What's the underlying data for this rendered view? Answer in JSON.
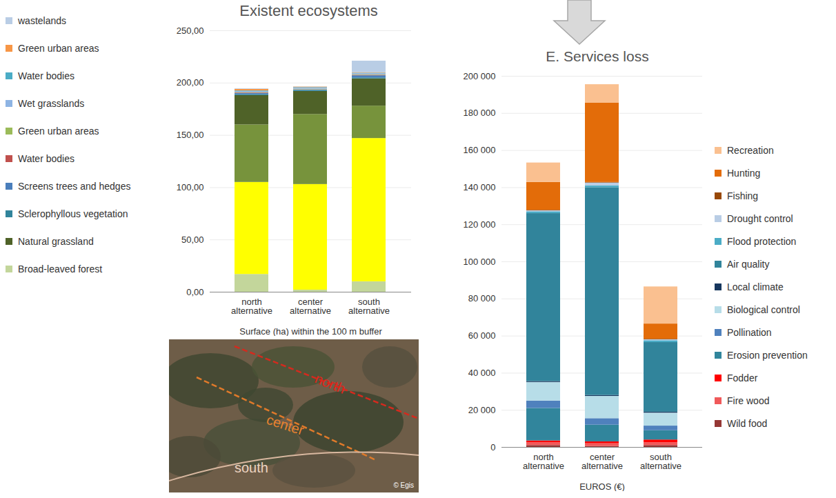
{
  "chart_data": [
    {
      "type": "bar",
      "stacked": true,
      "title": "Existent ecosystems",
      "xlabel": "Surface (ha) within the 100 m buffer",
      "categories": [
        "north alternative",
        "center alternative",
        "south alternative"
      ],
      "ylim": [
        0,
        250
      ],
      "yticks": [
        {
          "value": 0,
          "label": "0,00"
        },
        {
          "value": 50,
          "label": "50,00"
        },
        {
          "value": 100,
          "label": "100,00"
        },
        {
          "value": 150,
          "label": "150,00"
        },
        {
          "value": 200,
          "label": "200,00"
        },
        {
          "value": 250,
          "label": "250,00"
        }
      ],
      "grid": true,
      "legend": "left",
      "series": [
        {
          "name": "Broad-leaved forest",
          "color": "#c3d69b",
          "values": [
            17,
            2,
            10
          ]
        },
        {
          "name": null,
          "color": "#ffff00",
          "values": [
            88,
            101,
            137
          ]
        },
        {
          "name": null,
          "color": "#77933c",
          "values": [
            55,
            67,
            31
          ]
        },
        {
          "name": "Natural grassland",
          "color": "#4f6228",
          "values": [
            28,
            22,
            26
          ]
        },
        {
          "name": "Sclerophyllous vegetation",
          "color": "#31849b",
          "values": [
            1,
            1,
            1
          ]
        },
        {
          "name": "Screens trees and hedges",
          "color": "#4a7ebb",
          "values": [
            1,
            0.5,
            2
          ]
        },
        {
          "name": "Water bodies",
          "color": "#c0504d",
          "values": [
            0.5,
            0.2,
            0.5
          ]
        },
        {
          "name": "Green urban areas",
          "color": "#9bbb59",
          "values": [
            0.5,
            0.5,
            0.5
          ]
        },
        {
          "name": "Wet grasslands",
          "color": "#8eb4e3",
          "values": [
            1,
            1,
            1
          ]
        },
        {
          "name": "Water bodies",
          "color": "#4bacc6",
          "values": [
            0.5,
            0.5,
            0.5
          ]
        },
        {
          "name": "Green urban areas",
          "color": "#f79646",
          "values": [
            1.5,
            0.5,
            0.5
          ]
        },
        {
          "name": "wastelands",
          "color": "#b9cde5",
          "values": [
            0.5,
            0.2,
            11
          ]
        }
      ]
    },
    {
      "type": "bar",
      "stacked": true,
      "title": "E. Services loss",
      "xlabel": "EUROS (€)",
      "categories": [
        "north alternative",
        "center alternative",
        "south alternative"
      ],
      "ylim": [
        0,
        200000
      ],
      "yticks": [
        0,
        {
          "value": 20000,
          "label": "20 000"
        },
        {
          "value": 40000,
          "label": "40 000"
        },
        {
          "value": 60000,
          "label": "60 000"
        },
        {
          "value": 80000,
          "label": "80 000"
        },
        {
          "value": 100000,
          "label": "100 000"
        },
        {
          "value": 120000,
          "label": "120 000"
        },
        {
          "value": 140000,
          "label": "140 000"
        },
        {
          "value": 160000,
          "label": "160 000"
        },
        {
          "value": 180000,
          "label": "180 000"
        },
        {
          "value": 200000,
          "label": "200 000"
        }
      ],
      "grid": true,
      "legend": "right",
      "series": [
        {
          "name": "Wild food",
          "color": "#953735",
          "values": [
            1000,
            500,
            1000
          ]
        },
        {
          "name": "Fire wood",
          "color": "#f0595a",
          "values": [
            1500,
            1500,
            1500
          ]
        },
        {
          "name": "Fodder",
          "color": "#ff0000",
          "values": [
            1000,
            1000,
            1500
          ]
        },
        {
          "name": "Erosion prevention",
          "color": "#31859c",
          "values": [
            17500,
            9000,
            5000
          ]
        },
        {
          "name": "Pollination",
          "color": "#4f81bd",
          "values": [
            4000,
            3500,
            2500
          ]
        },
        {
          "name": "Biological control",
          "color": "#b7dde8",
          "values": [
            10000,
            12000,
            7000
          ]
        },
        {
          "name": "Local climate",
          "color": "#17375e",
          "values": [
            500,
            500,
            500
          ]
        },
        {
          "name": "Air quality",
          "color": "#31849b",
          "values": [
            90500,
            112000,
            37500
          ]
        },
        {
          "name": "Flood protection",
          "color": "#4bacc6",
          "values": [
            1000,
            1000,
            1000
          ]
        },
        {
          "name": "Drought control",
          "color": "#b9cde5",
          "values": [
            500,
            1500,
            500
          ]
        },
        {
          "name": "Fishing",
          "color": "#984807",
          "values": [
            300,
            300,
            300
          ]
        },
        {
          "name": "Hunting",
          "color": "#e36c09",
          "values": [
            15000,
            42700,
            8200
          ]
        },
        {
          "name": "Recreation",
          "color": "#fac090",
          "values": [
            10500,
            10000,
            20000
          ]
        }
      ]
    }
  ],
  "map": {
    "labels": [
      "north",
      "center",
      "south"
    ],
    "credit": "© Egis"
  }
}
